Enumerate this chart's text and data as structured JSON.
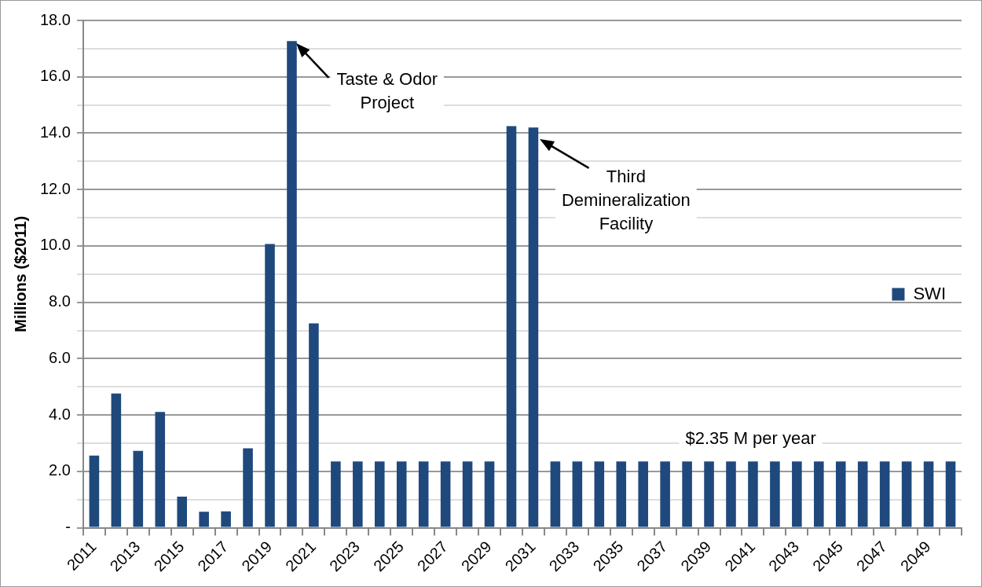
{
  "chart_data": {
    "type": "bar",
    "ylabel": "Millions ($2011)",
    "categories": [
      "2011",
      null,
      "2013",
      null,
      "2015",
      null,
      "2017",
      null,
      "2019",
      null,
      "2021",
      null,
      "2023",
      null,
      "2025",
      null,
      "2027",
      null,
      "2029",
      null,
      "2031",
      null,
      "2033",
      null,
      "2035",
      null,
      "2037",
      null,
      "2039",
      null,
      "2041",
      null,
      "2043",
      null,
      "2045",
      null,
      "2047",
      null,
      "2049",
      null
    ],
    "series": [
      {
        "name": "SWI",
        "color": "#1f497d",
        "values": [
          2.56,
          4.76,
          2.73,
          4.11,
          1.1,
          0.57,
          0.58,
          2.82,
          10.07,
          17.27,
          7.25,
          2.35,
          2.35,
          2.35,
          2.35,
          2.35,
          2.35,
          2.35,
          2.35,
          14.25,
          14.2,
          2.35,
          2.35,
          2.35,
          2.35,
          2.35,
          2.35,
          2.35,
          2.35,
          2.35,
          2.35,
          2.35,
          2.35,
          2.35,
          2.35,
          2.35,
          2.35,
          2.35,
          2.35,
          2.35
        ]
      }
    ],
    "ylim": [
      0,
      18
    ],
    "yticks": [
      {
        "value": 0,
        "label": "-"
      },
      {
        "value": 1,
        "label": null
      },
      {
        "value": 2,
        "label": "2.0"
      },
      {
        "value": 3,
        "label": null
      },
      {
        "value": 4,
        "label": "4.0"
      },
      {
        "value": 5,
        "label": null
      },
      {
        "value": 6,
        "label": "6.0"
      },
      {
        "value": 7,
        "label": null
      },
      {
        "value": 8,
        "label": "8.0"
      },
      {
        "value": 9,
        "label": null
      },
      {
        "value": 10,
        "label": "10.0"
      },
      {
        "value": 11,
        "label": null
      },
      {
        "value": 12,
        "label": "12.0"
      },
      {
        "value": 13,
        "label": null
      },
      {
        "value": 14,
        "label": "14.0"
      },
      {
        "value": 15,
        "label": null
      },
      {
        "value": 16,
        "label": "16.0"
      },
      {
        "value": 17,
        "label": null
      },
      {
        "value": 18,
        "label": "18.0"
      }
    ],
    "grid": "y",
    "legend": "right",
    "annotations": [
      "Taste & Odor\nProject",
      "Third\nDemineralization\nFacility",
      "$2.35 M per year"
    ]
  }
}
